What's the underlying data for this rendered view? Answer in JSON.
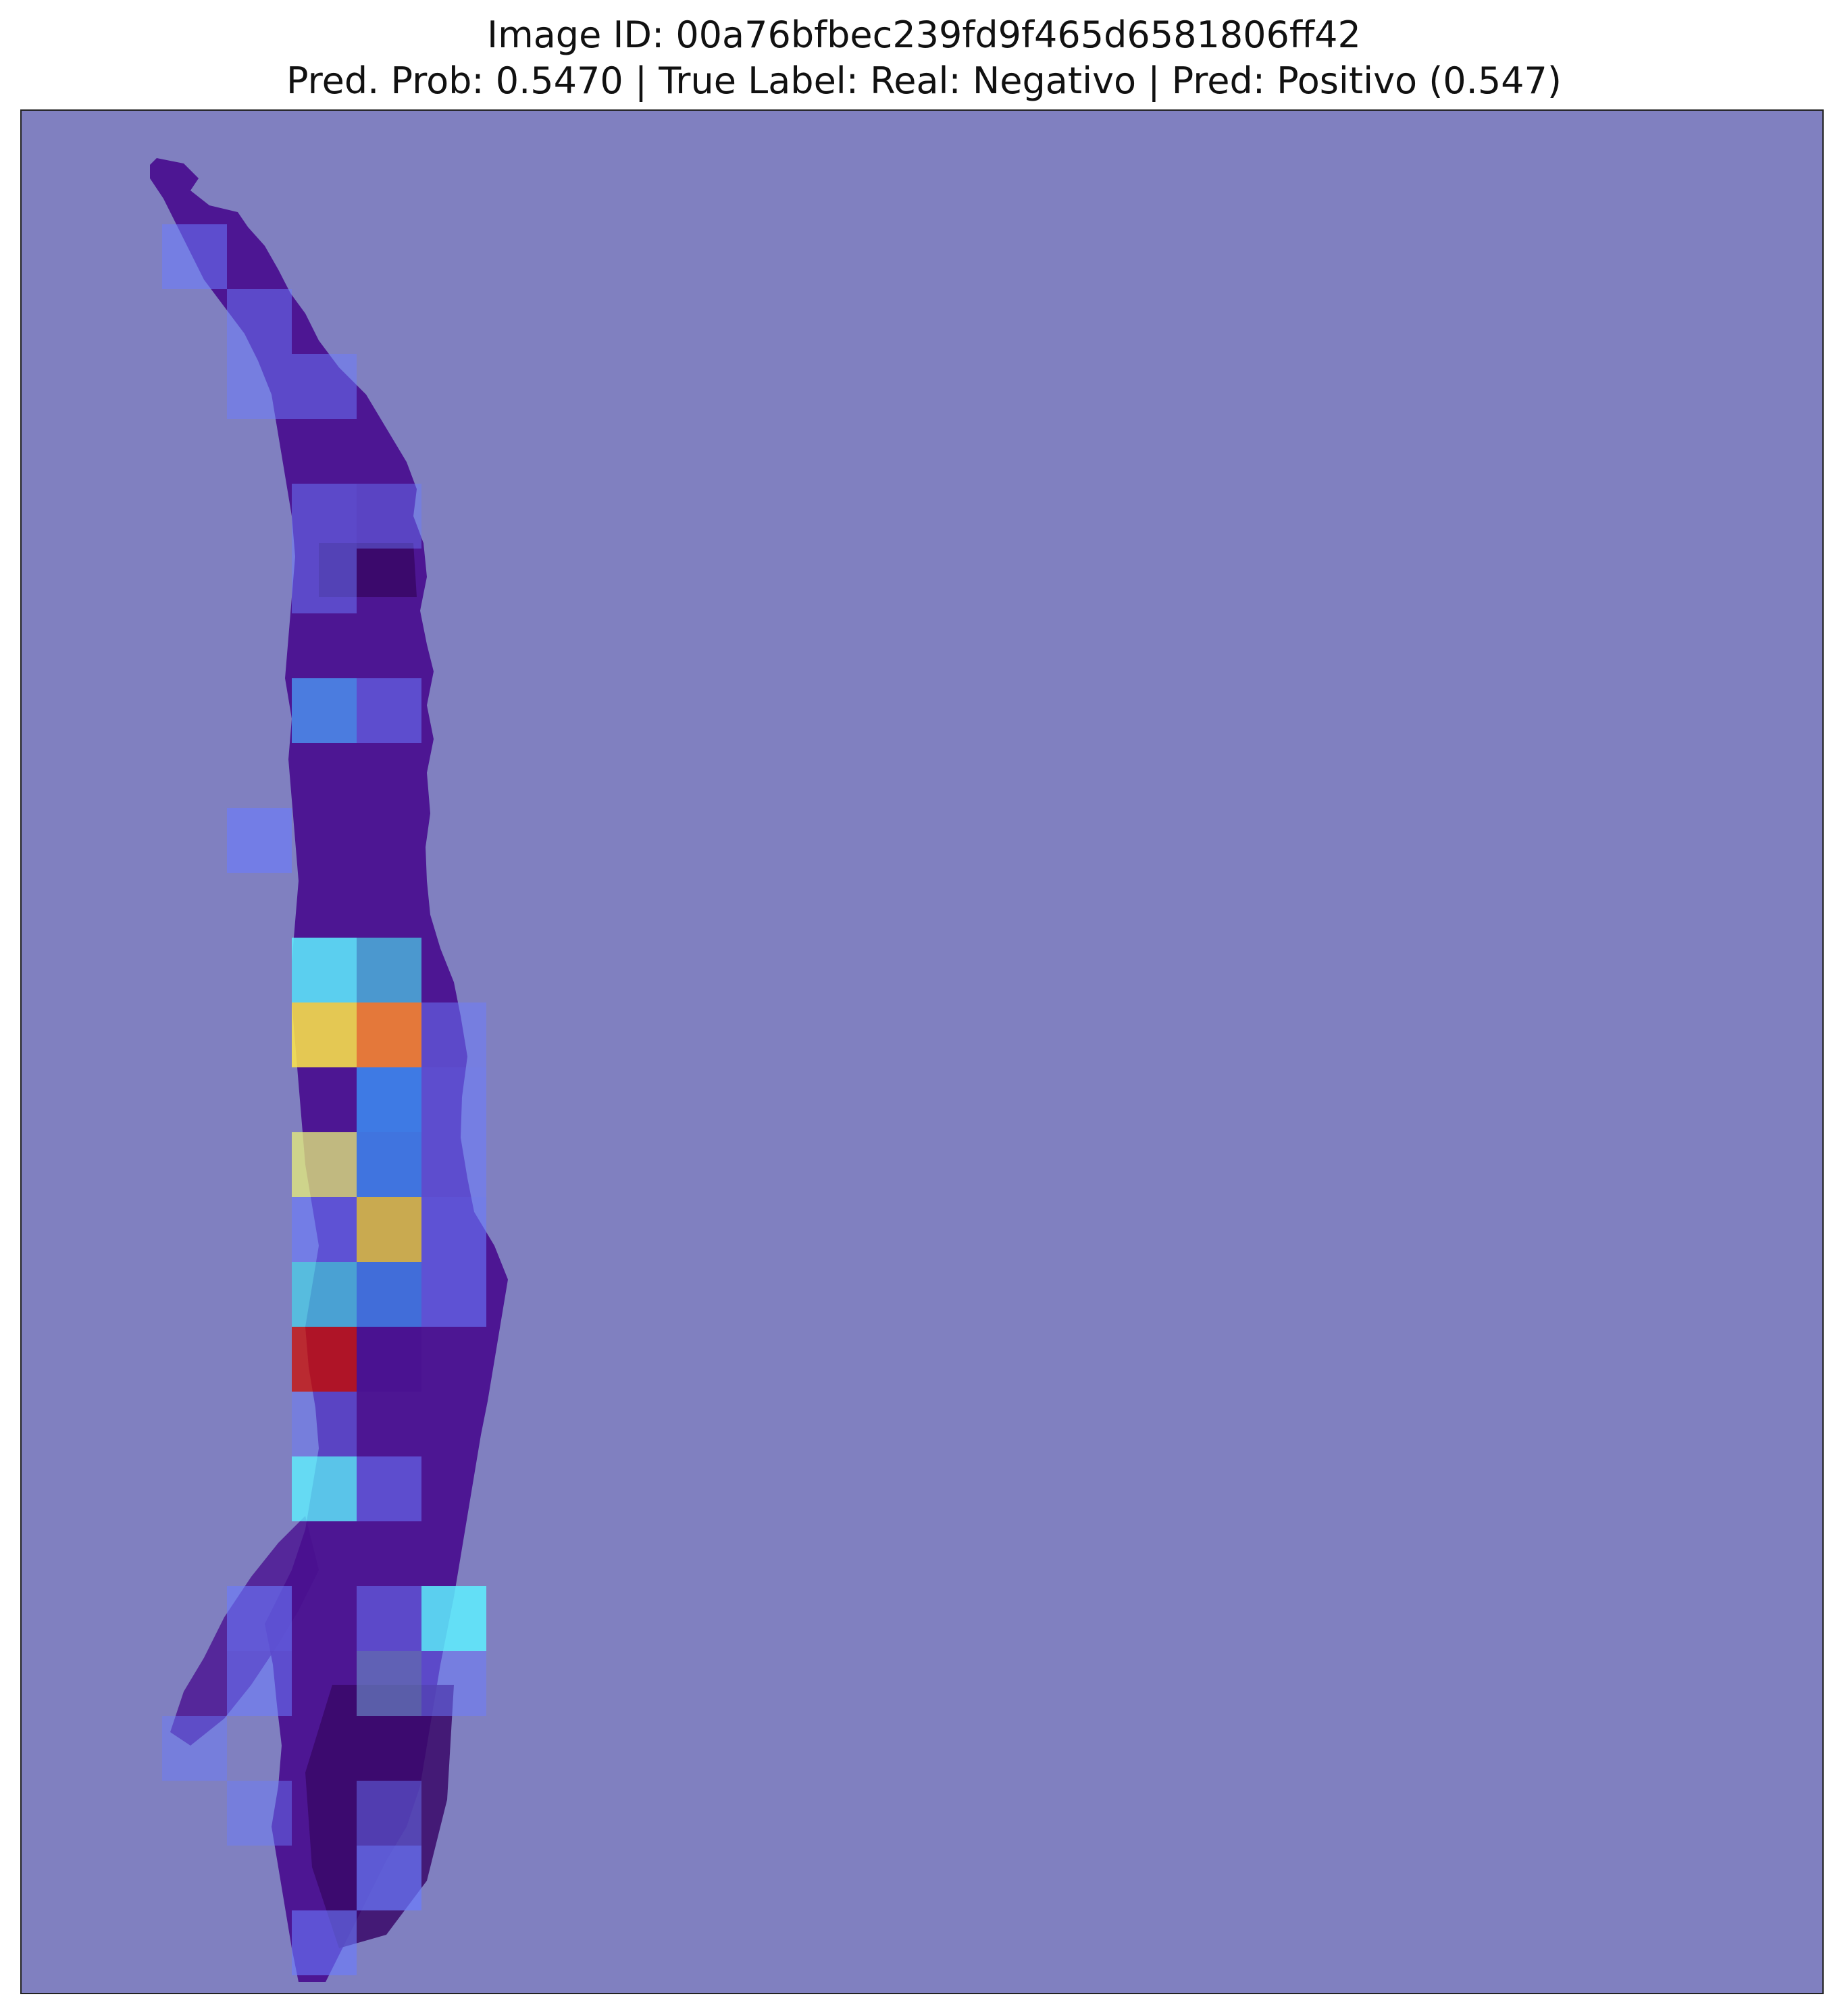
{
  "figure": {
    "title_line1": "Image ID: 00a76bfbec239fd9f465d6581806ff42",
    "title_line2": "Pred. Prob: 0.5470 | True Label: Real: Negativo | Pred: Positivo (0.547)",
    "background_color": "#8080c0",
    "tissue_color": "#4a1090",
    "tissue_dark_color": "#3a0868",
    "colormap": "jet"
  }
}
